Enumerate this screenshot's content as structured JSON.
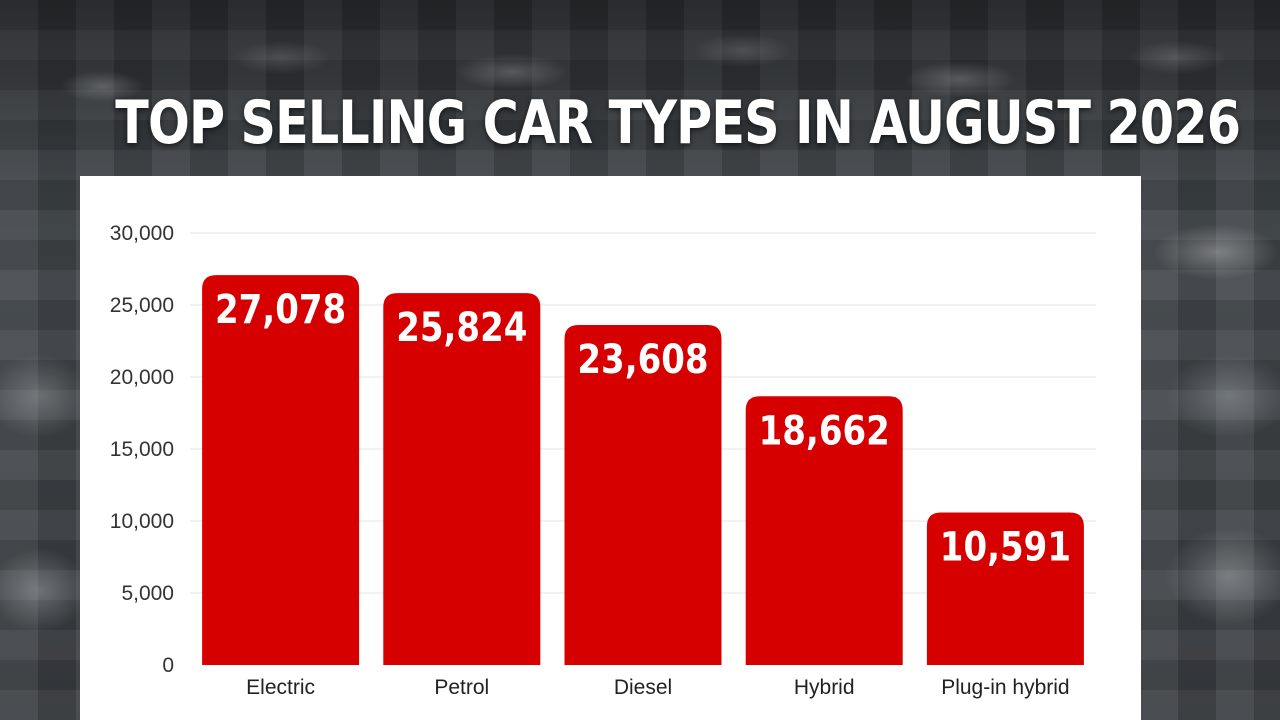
{
  "title": "TOP SELLING CAR TYPES IN AUGUST 2026",
  "colors": {
    "bar": "#d60000",
    "grid": "#e6e6e6",
    "panel": "#ffffff",
    "title": "#ffffff"
  },
  "chart_data": {
    "type": "bar",
    "title": "TOP SELLING CAR TYPES IN AUGUST 2026",
    "categories": [
      "Electric",
      "Petrol",
      "Diesel",
      "Hybrid",
      "Plug-in hybrid"
    ],
    "values": [
      27078,
      25824,
      23608,
      18662,
      10591
    ],
    "value_labels": [
      "27,078",
      "25,824",
      "23,608",
      "18,662",
      "10,591"
    ],
    "ylim": [
      0,
      30000
    ],
    "yticks": [
      0,
      5000,
      10000,
      15000,
      20000,
      25000,
      30000
    ],
    "ytick_labels": [
      "0",
      "5,000",
      "10,000",
      "15,000",
      "20,000",
      "25,000",
      "30,000"
    ],
    "xlabel": "",
    "ylabel": "",
    "grid": true,
    "legend": "none"
  }
}
